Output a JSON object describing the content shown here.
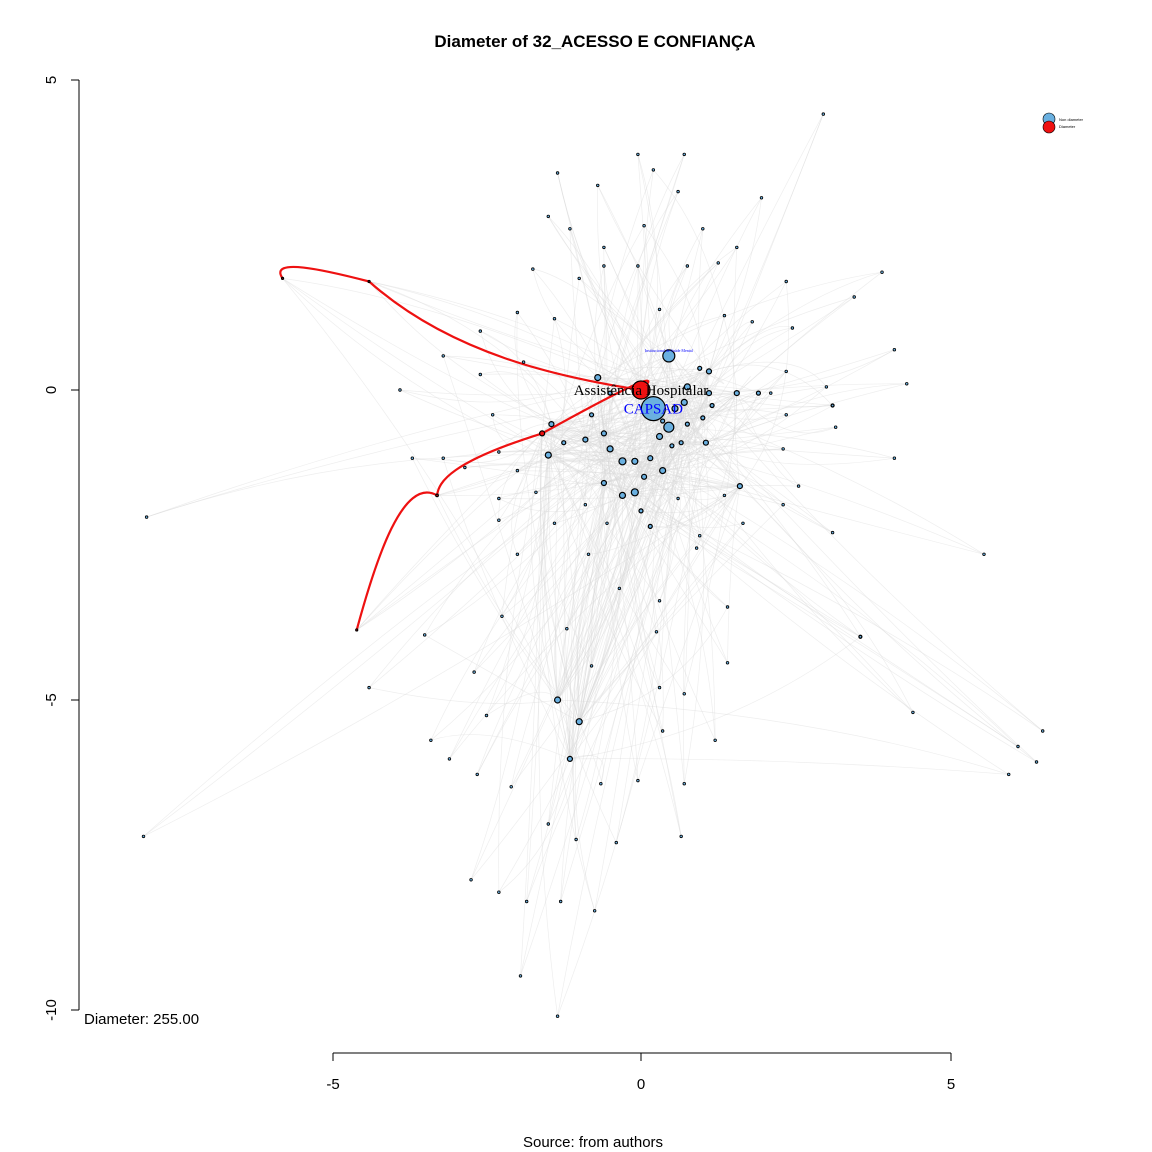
{
  "chart_data": {
    "type": "network",
    "title": "Diameter of 32_ACESSO E CONFIANÇA",
    "caption": "Source: from authors",
    "diameter_text": "Diameter: 255.00",
    "xlim": [
      -5,
      5
    ],
    "ylim": [
      -10,
      5
    ],
    "x_ticks": [
      -5,
      0,
      5
    ],
    "y_ticks": [
      5,
      0,
      -5,
      -10
    ],
    "x_tick_labels": [
      "-5",
      "0",
      "5"
    ],
    "y_tick_labels": [
      "5",
      "0",
      "-5",
      "-10"
    ],
    "legend": {
      "position": "top-right",
      "entries": [
        {
          "label": "Non diameter",
          "color": "#6ab0e0"
        },
        {
          "label": "Diameter",
          "color": "#ee1111"
        }
      ]
    },
    "colors": {
      "non_diameter": "#6ab0e0",
      "diameter": "#ee1111",
      "edges": "#d9d9d9",
      "diameter_edges": "#ee1111",
      "label_blue": "#0000ff"
    },
    "labeled_nodes": [
      {
        "label": "Assistência Hospitalar",
        "x": 0.0,
        "y": 0.0,
        "size": 9,
        "color": "#ee1111",
        "label_color": "#000000"
      },
      {
        "label": "CAPSAD",
        "x": 0.2,
        "y": -0.3,
        "size": 12,
        "color": "#6ab0e0",
        "label_color": "#0000ff"
      },
      {
        "label": "Institucional de Saúde Mental",
        "x": 0.45,
        "y": 0.55,
        "size": 6,
        "color": "#6ab0e0",
        "label_color": "#0000ff"
      }
    ],
    "diameter_path": [
      {
        "x": -5.8,
        "y": 1.8
      },
      {
        "x": -4.4,
        "y": 1.75
      },
      {
        "x": 0.0,
        "y": 0.0
      },
      {
        "x": -1.6,
        "y": -0.7
      },
      {
        "x": -3.3,
        "y": -1.7
      },
      {
        "x": -4.6,
        "y": -3.87
      }
    ],
    "nodes": [
      [
        0.0,
        0.0,
        9,
        "d"
      ],
      [
        0.2,
        -0.3,
        12,
        "n"
      ],
      [
        0.45,
        0.55,
        6,
        "n"
      ],
      [
        -1.6,
        -0.7,
        2.5,
        "d"
      ],
      [
        -3.3,
        -1.7,
        1.3,
        "d"
      ],
      [
        -4.6,
        -3.87,
        1,
        "d"
      ],
      [
        -5.8,
        1.8,
        1,
        "d"
      ],
      [
        -4.4,
        1.75,
        1,
        "d"
      ],
      [
        0.45,
        -0.6,
        5,
        "n"
      ],
      [
        0.55,
        -0.3,
        3,
        "n"
      ],
      [
        0.75,
        0.05,
        3,
        "n"
      ],
      [
        0.7,
        -0.2,
        3,
        "n"
      ],
      [
        0.35,
        -0.5,
        2,
        "n"
      ],
      [
        0.5,
        -0.9,
        2,
        "n"
      ],
      [
        0.3,
        -0.75,
        3,
        "n"
      ],
      [
        0.65,
        -0.85,
        2,
        "n"
      ],
      [
        -0.7,
        0.2,
        3,
        "n"
      ],
      [
        -0.5,
        -0.05,
        2,
        "n"
      ],
      [
        -0.8,
        -0.4,
        2,
        "n"
      ],
      [
        -0.6,
        -0.7,
        2.5,
        "n"
      ],
      [
        -0.9,
        -0.8,
        2.5,
        "n"
      ],
      [
        -0.5,
        -0.95,
        3,
        "n"
      ],
      [
        -0.3,
        -1.15,
        3.5,
        "n"
      ],
      [
        -0.1,
        -1.15,
        3,
        "n"
      ],
      [
        0.15,
        -1.1,
        2.5,
        "n"
      ],
      [
        0.35,
        -1.3,
        3,
        "n"
      ],
      [
        0.05,
        -1.4,
        2.5,
        "n"
      ],
      [
        -0.1,
        -1.65,
        3.5,
        "n"
      ],
      [
        -0.3,
        -1.7,
        3,
        "n"
      ],
      [
        -0.6,
        -1.5,
        2.5,
        "n"
      ],
      [
        0.0,
        -1.95,
        2,
        "n"
      ],
      [
        0.15,
        -2.2,
        2,
        "n"
      ],
      [
        1.1,
        0.3,
        2.5,
        "n"
      ],
      [
        1.1,
        -0.05,
        2.5,
        "n"
      ],
      [
        1.15,
        -0.25,
        2,
        "n"
      ],
      [
        1.0,
        -0.45,
        2,
        "n"
      ],
      [
        1.05,
        -0.85,
        2.5,
        "n"
      ],
      [
        0.75,
        -0.55,
        2,
        "n"
      ],
      [
        0.95,
        0.35,
        2,
        "n"
      ],
      [
        1.55,
        -0.05,
        2.5,
        "n"
      ],
      [
        1.9,
        -0.05,
        2,
        "n"
      ],
      [
        1.6,
        -1.55,
        2.5,
        "n"
      ],
      [
        -1.5,
        -1.05,
        3,
        "n"
      ],
      [
        -1.45,
        -0.55,
        2.5,
        "n"
      ],
      [
        -1.25,
        -0.85,
        2,
        "n"
      ],
      [
        -1.35,
        -5.0,
        3,
        "n"
      ],
      [
        -1.0,
        -5.35,
        3,
        "n"
      ],
      [
        -1.15,
        -5.95,
        2.5,
        "n"
      ],
      [
        3.55,
        -3.98,
        1.5,
        "n"
      ],
      [
        3.1,
        -0.25,
        1.5,
        "n"
      ],
      [
        -0.05,
        3.8,
        1,
        "s"
      ],
      [
        0.7,
        3.8,
        1,
        "s"
      ],
      [
        0.2,
        3.55,
        1,
        "s"
      ],
      [
        -1.35,
        3.5,
        1,
        "s"
      ],
      [
        -0.7,
        3.3,
        1,
        "s"
      ],
      [
        0.6,
        3.2,
        1,
        "s"
      ],
      [
        1.95,
        3.1,
        1,
        "s"
      ],
      [
        -1.5,
        2.8,
        1,
        "s"
      ],
      [
        2.95,
        4.45,
        1,
        "s"
      ],
      [
        -1.15,
        2.6,
        1,
        "s"
      ],
      [
        0.05,
        2.65,
        1,
        "s"
      ],
      [
        1.0,
        2.6,
        1,
        "s"
      ],
      [
        -0.6,
        2.3,
        1,
        "s"
      ],
      [
        1.55,
        2.3,
        1,
        "s"
      ],
      [
        -1.75,
        1.95,
        1,
        "s"
      ],
      [
        -0.6,
        2.0,
        1,
        "s"
      ],
      [
        -0.05,
        2.0,
        1,
        "s"
      ],
      [
        0.75,
        2.0,
        1,
        "s"
      ],
      [
        1.25,
        2.05,
        1,
        "s"
      ],
      [
        3.9,
        1.9,
        1,
        "s"
      ],
      [
        -1.0,
        1.8,
        1,
        "s"
      ],
      [
        2.35,
        1.75,
        1,
        "s"
      ],
      [
        3.45,
        1.5,
        1,
        "s"
      ],
      [
        0.3,
        1.3,
        1,
        "s"
      ],
      [
        -2.0,
        1.25,
        1,
        "s"
      ],
      [
        -1.4,
        1.15,
        1,
        "s"
      ],
      [
        1.35,
        1.2,
        1,
        "s"
      ],
      [
        1.8,
        1.1,
        1,
        "s"
      ],
      [
        -2.6,
        0.95,
        1,
        "s"
      ],
      [
        2.45,
        1.0,
        1,
        "s"
      ],
      [
        -3.2,
        0.55,
        1,
        "s"
      ],
      [
        2.35,
        0.3,
        1,
        "s"
      ],
      [
        -1.9,
        0.45,
        1,
        "s"
      ],
      [
        -2.6,
        0.25,
        1,
        "s"
      ],
      [
        4.1,
        0.65,
        1,
        "s"
      ],
      [
        -3.9,
        0.0,
        1,
        "s"
      ],
      [
        3.0,
        0.05,
        1,
        "s"
      ],
      [
        4.3,
        0.1,
        1,
        "s"
      ],
      [
        2.1,
        -0.05,
        1,
        "s"
      ],
      [
        -2.4,
        -0.4,
        1,
        "s"
      ],
      [
        2.35,
        -0.4,
        1,
        "s"
      ],
      [
        3.15,
        -0.6,
        1,
        "s"
      ],
      [
        -2.3,
        -1.0,
        1,
        "s"
      ],
      [
        2.3,
        -0.95,
        1,
        "s"
      ],
      [
        4.1,
        -1.1,
        1,
        "s"
      ],
      [
        -3.7,
        -1.1,
        1,
        "s"
      ],
      [
        -2.85,
        -1.25,
        1,
        "s"
      ],
      [
        -3.2,
        -1.1,
        1,
        "s"
      ],
      [
        -2.0,
        -1.3,
        1,
        "s"
      ],
      [
        2.55,
        -1.55,
        1,
        "s"
      ],
      [
        -2.3,
        -1.75,
        1,
        "s"
      ],
      [
        -1.7,
        -1.65,
        1,
        "s"
      ],
      [
        -0.9,
        -1.85,
        1,
        "s"
      ],
      [
        0.6,
        -1.75,
        1,
        "s"
      ],
      [
        1.35,
        -1.7,
        1,
        "s"
      ],
      [
        2.3,
        -1.85,
        1,
        "s"
      ],
      [
        -2.3,
        -2.1,
        1,
        "s"
      ],
      [
        -0.55,
        -2.15,
        1,
        "s"
      ],
      [
        1.65,
        -2.15,
        1,
        "s"
      ],
      [
        -8.0,
        -2.05,
        1,
        "s"
      ],
      [
        3.1,
        -2.3,
        1,
        "s"
      ],
      [
        -1.4,
        -2.15,
        1,
        "s"
      ],
      [
        0.95,
        -2.35,
        1,
        "s"
      ],
      [
        0.9,
        -2.55,
        1,
        "s"
      ],
      [
        -2.0,
        -2.65,
        1,
        "s"
      ],
      [
        -0.85,
        -2.65,
        1,
        "s"
      ],
      [
        5.55,
        -2.65,
        1,
        "s"
      ],
      [
        -0.35,
        -3.2,
        1,
        "s"
      ],
      [
        0.3,
        -3.4,
        1,
        "s"
      ],
      [
        1.4,
        -3.5,
        1,
        "s"
      ],
      [
        -2.25,
        -3.65,
        1,
        "s"
      ],
      [
        0.25,
        -3.9,
        1,
        "s"
      ],
      [
        -3.5,
        -3.95,
        1,
        "s"
      ],
      [
        -1.2,
        -3.85,
        1,
        "s"
      ],
      [
        1.4,
        -4.4,
        1,
        "s"
      ],
      [
        -0.8,
        -4.45,
        1,
        "s"
      ],
      [
        -2.7,
        -4.55,
        1,
        "s"
      ],
      [
        -4.4,
        -4.8,
        1,
        "s"
      ],
      [
        0.3,
        -4.8,
        1,
        "s"
      ],
      [
        0.7,
        -4.9,
        1,
        "s"
      ],
      [
        -2.5,
        -5.25,
        1,
        "s"
      ],
      [
        0.35,
        -5.5,
        1,
        "s"
      ],
      [
        1.2,
        -5.65,
        1,
        "s"
      ],
      [
        -3.4,
        -5.65,
        1,
        "s"
      ],
      [
        -3.1,
        -5.95,
        1,
        "s"
      ],
      [
        -2.65,
        -6.2,
        1,
        "s"
      ],
      [
        -2.1,
        -6.4,
        1,
        "s"
      ],
      [
        -0.65,
        -6.35,
        1,
        "s"
      ],
      [
        -0.05,
        -6.3,
        1,
        "s"
      ],
      [
        0.7,
        -6.35,
        1,
        "s"
      ],
      [
        4.4,
        -5.2,
        1,
        "s"
      ],
      [
        6.5,
        -5.5,
        1,
        "s"
      ],
      [
        6.1,
        -5.75,
        1,
        "s"
      ],
      [
        6.4,
        -6.0,
        1,
        "s"
      ],
      [
        5.95,
        -6.2,
        1,
        "s"
      ],
      [
        -1.5,
        -7.0,
        1,
        "s"
      ],
      [
        -1.05,
        -7.25,
        1,
        "s"
      ],
      [
        -0.4,
        -7.3,
        1,
        "s"
      ],
      [
        0.65,
        -7.2,
        1,
        "s"
      ],
      [
        -8.05,
        -7.2,
        1,
        "s"
      ],
      [
        -2.75,
        -7.9,
        1,
        "s"
      ],
      [
        -2.3,
        -8.1,
        1,
        "s"
      ],
      [
        -1.85,
        -8.25,
        1,
        "s"
      ],
      [
        -1.3,
        -8.25,
        1,
        "s"
      ],
      [
        -0.75,
        -8.4,
        1,
        "s"
      ],
      [
        -1.95,
        -9.45,
        1,
        "s"
      ],
      [
        -1.35,
        -10.1,
        1,
        "s"
      ]
    ]
  }
}
